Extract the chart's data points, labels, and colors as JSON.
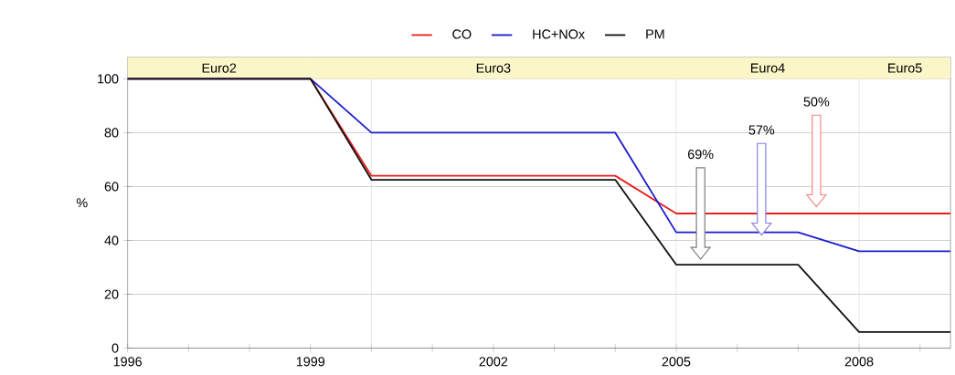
{
  "chart_data": {
    "type": "line",
    "ylabel": "%",
    "xlim": [
      1996,
      2009.5
    ],
    "ylim": [
      0,
      108
    ],
    "xticks": [
      1996,
      {
        "value": 1997,
        "label": null
      },
      {
        "value": 1998,
        "label": null
      },
      1999,
      {
        "value": 2000,
        "label": null
      },
      {
        "value": 2001,
        "label": null
      },
      2002,
      {
        "value": 2003,
        "label": null
      },
      {
        "value": 2004,
        "label": null
      },
      2005,
      {
        "value": 2006,
        "label": null
      },
      {
        "value": 2007,
        "label": null
      },
      2008,
      {
        "value": 2009,
        "label": null
      }
    ],
    "yticks": [
      0,
      20,
      40,
      60,
      80,
      100
    ],
    "grid": "y",
    "legend": "top",
    "marker": "none",
    "line_style": "solid",
    "series": [
      {
        "name": "CO",
        "color": "#e8201c",
        "x": [
          1996,
          1999,
          2000,
          2004,
          2005,
          2009.5
        ],
        "values": [
          100,
          100,
          64,
          64,
          50,
          50
        ]
      },
      {
        "name": "HC+NOx",
        "color": "#1c1ccc",
        "x": [
          1996,
          1999,
          2000,
          2004,
          2005,
          2007,
          2008,
          2009.5
        ],
        "values": [
          100,
          100,
          80,
          80,
          43,
          43,
          36,
          36
        ]
      },
      {
        "name": "PM",
        "color": "#111111",
        "x": [
          1996,
          1999,
          2000,
          2004,
          2005,
          2007,
          2008,
          2009.5
        ],
        "values": [
          100,
          100,
          62.5,
          62.5,
          31,
          31,
          6,
          6
        ]
      }
    ],
    "bands": [
      {
        "axis": "x",
        "from": 1996,
        "to": 1999,
        "label": "Euro2",
        "color": "#fbf6c8"
      },
      {
        "axis": "x",
        "from": 1999,
        "to": 2005,
        "label": "Euro3",
        "color": "#fbf6c8"
      },
      {
        "axis": "x",
        "from": 2005,
        "to": 2008,
        "label": "Euro4",
        "color": "#fbf6c8"
      },
      {
        "axis": "x",
        "from": 2008,
        "to": 2009.5,
        "label": "Euro5",
        "color": "#fbf6c8"
      }
    ],
    "ref_lines": [
      {
        "axis": "x",
        "value": 2000,
        "color": "#d4d4d4"
      },
      {
        "axis": "x",
        "value": 2005,
        "color": "#d4d4d4"
      },
      {
        "axis": "x",
        "value": 2008,
        "color": "#d4d4d4"
      }
    ],
    "annotations": [
      "69%",
      "57%",
      "50%"
    ]
  }
}
